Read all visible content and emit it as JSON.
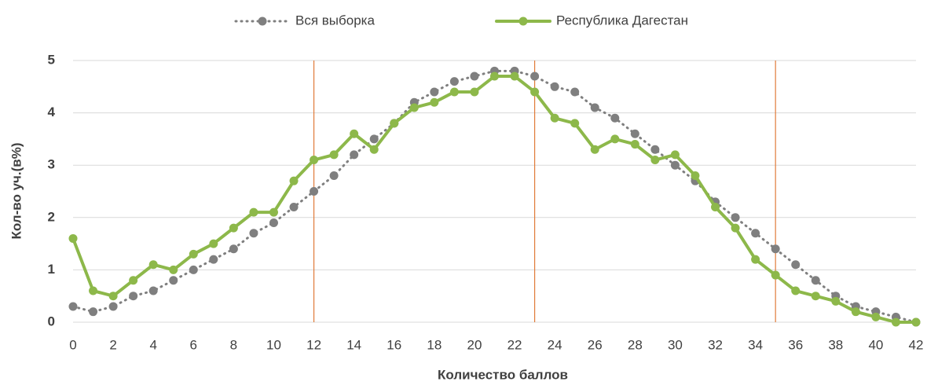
{
  "chart_data": {
    "type": "line",
    "x_label": "Количество баллов",
    "y_label": "Кол-во уч.(в%)",
    "x": [
      0,
      1,
      2,
      3,
      4,
      5,
      6,
      7,
      8,
      9,
      10,
      11,
      12,
      13,
      14,
      15,
      16,
      17,
      18,
      19,
      20,
      21,
      22,
      23,
      24,
      25,
      26,
      27,
      28,
      29,
      30,
      31,
      32,
      33,
      34,
      35,
      36,
      37,
      38,
      39,
      40,
      41,
      42
    ],
    "series": [
      {
        "name": "Вся выборка",
        "color": "#7f7f7f",
        "style": "dotted",
        "values": [
          0.3,
          0.2,
          0.3,
          0.5,
          0.6,
          0.8,
          1.0,
          1.2,
          1.4,
          1.7,
          1.9,
          2.2,
          2.5,
          2.8,
          3.2,
          3.5,
          3.8,
          4.2,
          4.4,
          4.6,
          4.7,
          4.8,
          4.8,
          4.7,
          4.5,
          4.4,
          4.1,
          3.9,
          3.6,
          3.3,
          3.0,
          2.7,
          2.3,
          2.0,
          1.7,
          1.4,
          1.1,
          0.8,
          0.5,
          0.3,
          0.2,
          0.1,
          0.0
        ]
      },
      {
        "name": "Республика Дагестан",
        "color": "#8db84a",
        "style": "solid",
        "values": [
          1.6,
          0.6,
          0.5,
          0.8,
          1.1,
          1.0,
          1.3,
          1.5,
          1.8,
          2.1,
          2.1,
          2.7,
          3.1,
          3.2,
          3.6,
          3.3,
          3.8,
          4.1,
          4.2,
          4.4,
          4.4,
          4.7,
          4.7,
          4.4,
          3.9,
          3.8,
          3.3,
          3.5,
          3.4,
          3.1,
          3.2,
          2.8,
          2.2,
          1.8,
          1.2,
          0.9,
          0.6,
          0.5,
          0.4,
          0.2,
          0.1,
          0.0,
          0.0
        ]
      }
    ],
    "xlim": [
      0,
      42
    ],
    "xticks": [
      0,
      2,
      4,
      6,
      8,
      10,
      12,
      14,
      16,
      18,
      20,
      22,
      24,
      26,
      28,
      30,
      32,
      34,
      36,
      38,
      40,
      42
    ],
    "ylim": [
      0,
      5
    ],
    "yticks": [
      0,
      1,
      2,
      3,
      4,
      5
    ],
    "grid": true,
    "reference_lines_x": [
      12,
      23,
      35
    ],
    "reference_color": "#e07b39",
    "legend": "top"
  }
}
